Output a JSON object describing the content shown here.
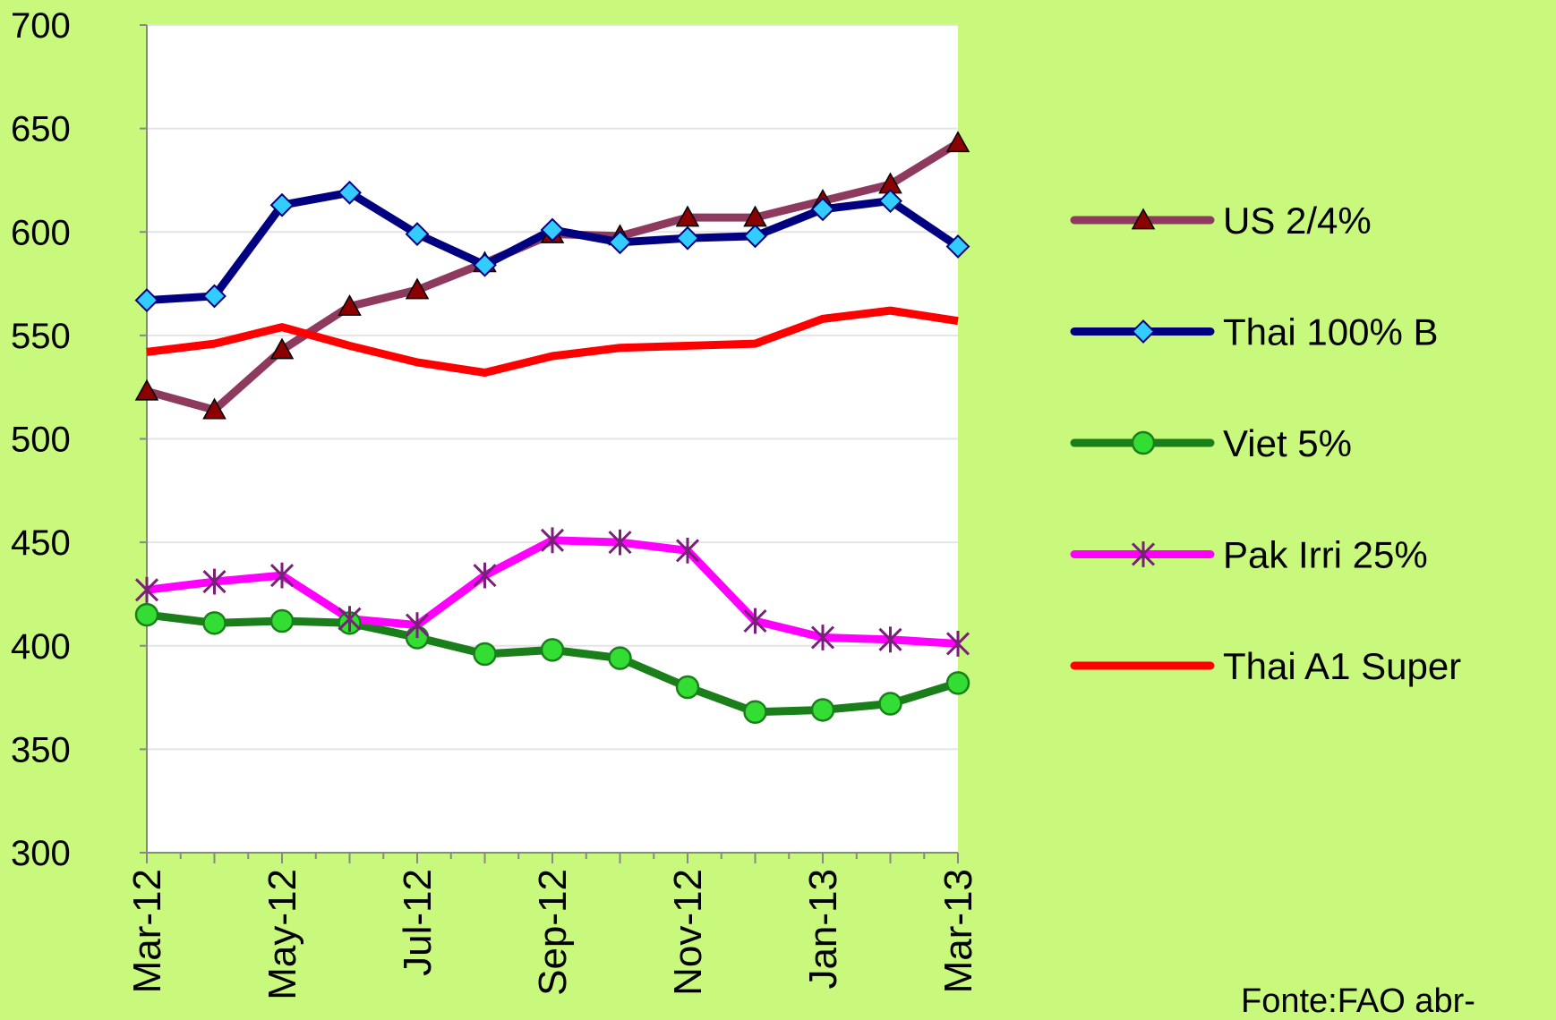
{
  "chart_data": {
    "type": "line",
    "categories": [
      "Mar-12",
      null,
      "May-12",
      null,
      "Jul-12",
      null,
      "Sep-12",
      null,
      "Nov-12",
      null,
      "Jan-13",
      null,
      "Mar-13"
    ],
    "series": [
      {
        "name": "US 2/4%",
        "color": "#8e3a5e",
        "marker": "triangle",
        "marker_color": "#8b0000",
        "values": [
          523,
          514,
          543,
          564,
          572,
          585,
          599,
          598,
          607,
          607,
          615,
          623,
          643
        ]
      },
      {
        "name": "Thai 100% B",
        "color": "#000080",
        "marker": "diamond",
        "marker_color": "#33ccff",
        "values": [
          567,
          569,
          613,
          619,
          599,
          584,
          601,
          595,
          597,
          598,
          611,
          615,
          593
        ]
      },
      {
        "name": "Viet 5%",
        "color": "#1a7f1a",
        "marker": "circle",
        "marker_color": "#33dd33",
        "values": [
          415,
          411,
          412,
          411,
          404,
          396,
          398,
          394,
          380,
          368,
          369,
          372,
          382
        ]
      },
      {
        "name": "Pak Irri 25%",
        "color": "#ff00ff",
        "marker": "star",
        "marker_color": "#7a1f7a",
        "values": [
          427,
          431,
          434,
          413,
          410,
          434,
          451,
          450,
          446,
          412,
          404,
          403,
          401
        ]
      },
      {
        "name": "Thai A1 Super",
        "color": "#ff0000",
        "marker": "none",
        "marker_color": "#ff0000",
        "values": [
          542,
          546,
          554,
          545,
          537,
          532,
          540,
          544,
          545,
          546,
          558,
          562,
          557
        ]
      }
    ],
    "ylim": [
      300,
      700
    ],
    "yticks": [
      300,
      350,
      400,
      450,
      500,
      550,
      600,
      650,
      700
    ],
    "grid": true,
    "legend": "right",
    "annotation": "Fonte:FAO abr-"
  }
}
